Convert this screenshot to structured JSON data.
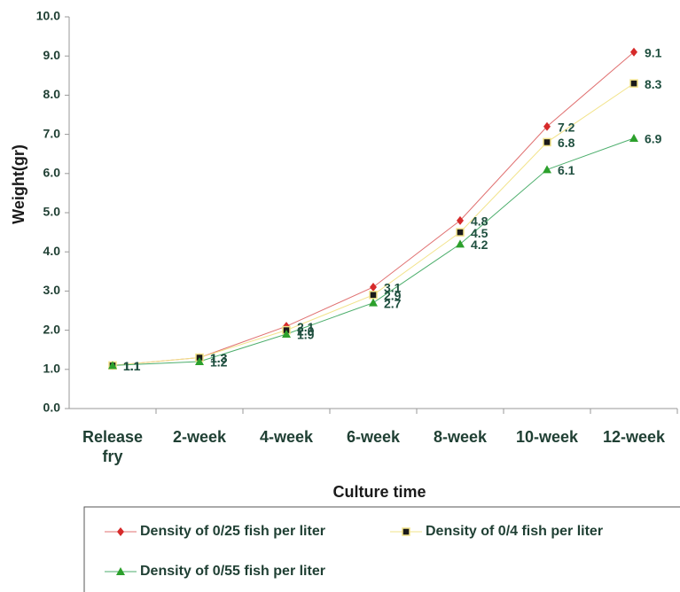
{
  "chart_data": {
    "type": "line",
    "x_label": "Culture time",
    "y_label": "Weight(gr)",
    "categories": [
      "Release fry",
      "2-week",
      "4-week",
      "6-week",
      "8-week",
      "10-week",
      "12-week"
    ],
    "series": [
      {
        "name": "Density of 0/25 fish per liter",
        "color": "#d62a2a",
        "line_color": "#e07070",
        "marker": "diamond",
        "values": [
          1.1,
          1.3,
          2.1,
          3.1,
          4.8,
          7.2,
          9.1
        ],
        "value_labels": [
          "1.1",
          "1.3",
          "2.1",
          "3.1",
          "4.8",
          "7.2",
          "9.1"
        ]
      },
      {
        "name": "Density of 0/4 fish per liter",
        "color": "#1a1a1a",
        "line_color": "#f2e38a",
        "marker": "square",
        "values": [
          1.1,
          1.3,
          2.0,
          2.9,
          4.5,
          6.8,
          8.3
        ],
        "value_labels": [
          "1.1",
          "1.3",
          "2.0",
          "2.9",
          "4.5",
          "6.8",
          "8.3"
        ]
      },
      {
        "name": "Density of 0/55 fish per liter",
        "color": "#2ca02c",
        "line_color": "#4cae6c",
        "marker": "triangle",
        "values": [
          1.1,
          1.2,
          1.9,
          2.7,
          4.2,
          6.1,
          6.9
        ],
        "value_labels": [
          "1.1",
          "1.2",
          "1.9",
          "2.7",
          "4.2",
          "6.1",
          "6.9"
        ]
      }
    ],
    "ylim": [
      0,
      10
    ],
    "yticks": [
      {
        "value": 0,
        "label": "0.0"
      },
      {
        "value": 1,
        "label": "1.0"
      },
      {
        "value": 2,
        "label": "2.0"
      },
      {
        "value": 3,
        "label": "3.0"
      },
      {
        "value": 4,
        "label": "4.0"
      },
      {
        "value": 5,
        "label": "5.0"
      },
      {
        "value": 6,
        "label": "6.0"
      },
      {
        "value": 7,
        "label": "7.0"
      },
      {
        "value": 8,
        "label": "8.0"
      },
      {
        "value": 9,
        "label": "9.0"
      },
      {
        "value": 10,
        "label": "10.0"
      }
    ],
    "grid": false,
    "legend": "bottom"
  }
}
